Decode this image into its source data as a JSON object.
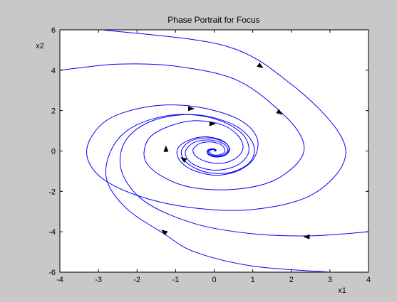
{
  "chart_data": {
    "type": "line",
    "title": "Phase Portrait for Focus",
    "xlabel": "x1",
    "ylabel": "x2",
    "xlim": [
      -4,
      4
    ],
    "ylim": [
      -6,
      6
    ],
    "grid": false,
    "x_ticks": [
      "-4",
      "-3",
      "-2",
      "-1",
      "0",
      "1",
      "2",
      "3",
      "4"
    ],
    "y_ticks": [
      "-6",
      "-4",
      "-2",
      "0",
      "2",
      "4",
      "6"
    ],
    "colors": {
      "figure_bg": "#c8c8c8",
      "plot_bg": "#ffffff",
      "curve": "#0000ff",
      "arrow": "#000000"
    },
    "series": [
      {
        "values": [
          [
            -2.9,
            6.0
          ],
          [
            0.3,
            5.2
          ],
          [
            2.0,
            3.3
          ],
          [
            3.2,
            1.0
          ],
          [
            3.35,
            -0.6
          ],
          [
            2.5,
            -2.2
          ],
          [
            1.0,
            -2.9
          ],
          [
            -0.6,
            -2.8
          ],
          [
            -2.0,
            -2.2
          ],
          [
            -3.0,
            -1.2
          ],
          [
            -3.3,
            0.1
          ],
          [
            -2.8,
            1.5
          ],
          [
            -1.7,
            2.2
          ],
          [
            -0.5,
            2.2
          ],
          [
            0.6,
            1.6
          ],
          [
            1.1,
            0.7
          ],
          [
            1.05,
            -0.3
          ],
          [
            0.65,
            -0.95
          ],
          [
            0.05,
            -1.2
          ],
          [
            -0.55,
            -0.95
          ],
          [
            -0.9,
            -0.45
          ],
          [
            -0.95,
            0.1
          ],
          [
            -0.7,
            0.5
          ],
          [
            -0.3,
            0.7
          ],
          [
            0.1,
            0.6
          ],
          [
            0.33,
            0.35
          ],
          [
            0.38,
            0.05
          ],
          [
            0.27,
            -0.18
          ],
          [
            0.1,
            -0.28
          ],
          [
            -0.06,
            -0.25
          ],
          [
            -0.16,
            -0.13
          ],
          [
            -0.17,
            0.0
          ],
          [
            -0.11,
            0.09
          ],
          [
            -0.03,
            0.11
          ],
          [
            0.03,
            0.08
          ],
          [
            0.05,
            0.03
          ],
          [
            0.03,
            -0.01
          ],
          [
            0.0,
            0.0
          ]
        ]
      },
      {
        "values": [
          [
            -4.0,
            4.0
          ],
          [
            -2.5,
            4.3
          ],
          [
            -1.0,
            4.2
          ],
          [
            0.6,
            3.5
          ],
          [
            1.8,
            1.8
          ],
          [
            2.3,
            0.5
          ],
          [
            2.2,
            -0.5
          ],
          [
            1.5,
            -1.5
          ],
          [
            0.5,
            -1.9
          ],
          [
            -0.6,
            -1.8
          ],
          [
            -1.4,
            -1.2
          ],
          [
            -1.8,
            -0.4
          ],
          [
            -1.7,
            0.6
          ],
          [
            -1.2,
            1.2
          ],
          [
            -0.5,
            1.5
          ],
          [
            0.2,
            1.3
          ],
          [
            0.6,
            0.8
          ],
          [
            0.75,
            0.2
          ],
          [
            0.6,
            -0.3
          ],
          [
            0.25,
            -0.6
          ],
          [
            -0.15,
            -0.55
          ],
          [
            -0.45,
            -0.3
          ],
          [
            -0.55,
            0.05
          ],
          [
            -0.4,
            0.35
          ],
          [
            -0.15,
            0.45
          ],
          [
            0.1,
            0.38
          ],
          [
            0.25,
            0.18
          ],
          [
            0.27,
            -0.05
          ],
          [
            0.15,
            -0.18
          ],
          [
            0.0,
            -0.2
          ],
          [
            -0.1,
            -0.1
          ],
          [
            -0.1,
            0.03
          ],
          [
            -0.04,
            0.07
          ],
          [
            0.02,
            0.05
          ],
          [
            0.03,
            0.01
          ],
          [
            0.0,
            0.0
          ]
        ]
      },
      {
        "values": [
          [
            3.0,
            -6.0
          ],
          [
            1.0,
            -5.7
          ],
          [
            -0.5,
            -5.0
          ],
          [
            -1.3,
            -4.1
          ],
          [
            -2.3,
            -2.8
          ],
          [
            -2.8,
            -1.3
          ],
          [
            -2.6,
            0.3
          ],
          [
            -2.0,
            1.3
          ],
          [
            -1.0,
            1.8
          ],
          [
            0.0,
            1.6
          ],
          [
            0.7,
            0.9
          ],
          [
            0.9,
            0.0
          ],
          [
            0.6,
            -0.7
          ],
          [
            0.0,
            -0.95
          ],
          [
            -0.55,
            -0.65
          ],
          [
            -0.75,
            -0.1
          ],
          [
            -0.55,
            0.4
          ],
          [
            -0.15,
            0.55
          ],
          [
            0.2,
            0.4
          ],
          [
            0.35,
            0.1
          ],
          [
            0.28,
            -0.15
          ],
          [
            0.08,
            -0.25
          ],
          [
            -0.1,
            -0.18
          ],
          [
            -0.15,
            0.0
          ],
          [
            -0.08,
            0.08
          ],
          [
            0.02,
            0.07
          ],
          [
            0.04,
            0.02
          ],
          [
            0.0,
            0.0
          ]
        ]
      },
      {
        "values": [
          [
            4.0,
            -4.0
          ],
          [
            2.5,
            -4.2
          ],
          [
            1.0,
            -4.1
          ],
          [
            -0.5,
            -3.6
          ],
          [
            -1.8,
            -2.5
          ],
          [
            -2.4,
            -1.0
          ],
          [
            -2.3,
            0.5
          ],
          [
            -1.6,
            1.5
          ],
          [
            -0.5,
            1.8
          ],
          [
            0.5,
            1.3
          ],
          [
            1.0,
            0.4
          ],
          [
            0.95,
            -0.5
          ],
          [
            0.45,
            -1.05
          ],
          [
            -0.2,
            -1.05
          ],
          [
            -0.7,
            -0.6
          ],
          [
            -0.85,
            0.0
          ],
          [
            -0.6,
            0.5
          ],
          [
            -0.15,
            0.65
          ],
          [
            0.25,
            0.45
          ],
          [
            0.4,
            0.1
          ],
          [
            0.3,
            -0.2
          ],
          [
            0.05,
            -0.3
          ],
          [
            -0.15,
            -0.18
          ],
          [
            -0.18,
            0.02
          ],
          [
            -0.08,
            0.1
          ],
          [
            0.03,
            0.08
          ],
          [
            0.05,
            0.02
          ],
          [
            0.0,
            0.0
          ]
        ]
      }
    ],
    "arrows": [
      {
        "x": 1.2,
        "y": 4.2,
        "direction": "down-right"
      },
      {
        "x": 1.7,
        "y": 1.9,
        "direction": "down-right"
      },
      {
        "x": -0.6,
        "y": 2.1,
        "direction": "right"
      },
      {
        "x": -0.05,
        "y": 1.35,
        "direction": "right"
      },
      {
        "x": -1.25,
        "y": 0.1,
        "direction": "up"
      },
      {
        "x": -0.8,
        "y": -0.4,
        "direction": "up-left"
      },
      {
        "x": -1.3,
        "y": -4.0,
        "direction": "up-left"
      },
      {
        "x": 2.4,
        "y": -4.25,
        "direction": "left"
      }
    ]
  }
}
